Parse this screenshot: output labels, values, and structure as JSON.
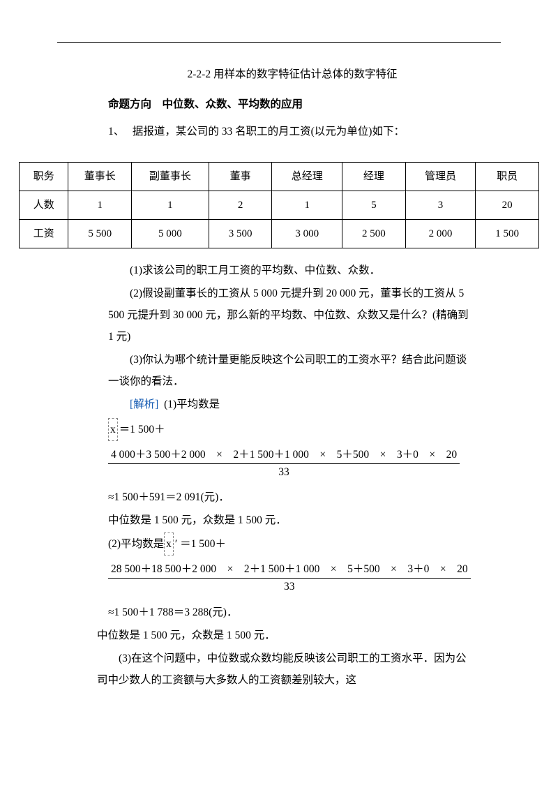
{
  "hr": {
    "color": "#000000"
  },
  "title": "2-2-2 用样本的数字特征估计总体的数字特征",
  "subtitle": "命题方向　中位数、众数、平均数的应用",
  "q1_label": "1、",
  "q1_text": "据报道，某公司的 33 名职工的月工资(以元为单位)如下：",
  "table": {
    "headers": [
      "职务",
      "董事长",
      "副董事长",
      "董事",
      "总经理",
      "经理",
      "管理员",
      "职员"
    ],
    "row_count": [
      "人数",
      "1",
      "1",
      "2",
      "1",
      "5",
      "3",
      "20"
    ],
    "row_wage": [
      "工资",
      "5 500",
      "5 000",
      "3 500",
      "3 000",
      "2 500",
      "2 000",
      "1 500"
    ],
    "col_widths": [
      "70px",
      "90px",
      "110px",
      "90px",
      "100px",
      "90px",
      "100px",
      "90px"
    ]
  },
  "p1": "(1)求该公司的职工月工资的平均数、中位数、众数．",
  "p2": "(2)假设副董事长的工资从 5  000 元提升到 20  000 元，董事长的工资从 5  500 元提升到 30  000 元，那么新的平均数、中位数、众数又是什么？(精确到 1 元)",
  "p3": "(3)你认为哪个统计量更能反映这个公司职工的工资水平？结合此问题谈一谈你的看法．",
  "sol_label": "[解析]",
  "sol_1_text": "(1)平均数是",
  "xbar": "x",
  "eq1_prefix": "＝1 500＋",
  "frac1_num": "4 000＋3 500＋2 000　×　2＋1 500＋1 000　×　5＋500　×　3＋0　×　20",
  "frac1_den": "33",
  "sol_1b": "≈1 500＋591＝2 091(元)．",
  "sol_1c": "中位数是 1 500 元，众数是 1 500 元．",
  "sol_2a_prefix": "(2)平均数是",
  "xbar_prime": "x",
  "prime": "′",
  "sol_2a_suffix": "＝1 500＋",
  "frac2_num": "28 500＋18 500＋2 000　×　2＋1 500＋1 000　×　5＋500　×　3＋0　×　20",
  "frac2_den": "33",
  "sol_2b": "≈1 500＋1 788＝3 288(元)．",
  "sol_2c": "中位数是 1 500 元，众数是 1 500 元．",
  "sol_3": "(3)在这个问题中，中位数或众数均能反映该公司职工的工资水平．因为公司中少数人的工资额与大多数人的工资额差别较大，这"
}
